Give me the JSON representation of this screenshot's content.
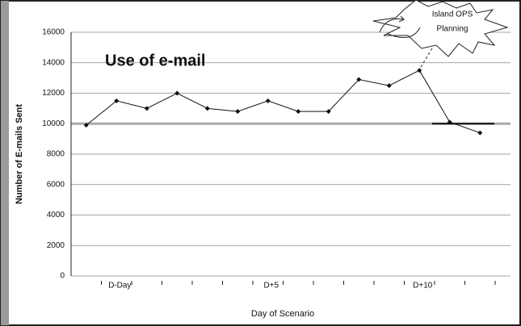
{
  "chart_data": {
    "type": "line",
    "title": "Use of e-mail",
    "annotation": [
      "Island OPS",
      "Planning"
    ],
    "x_label": "Day of Scenario",
    "y_label": "Number of E-mails Sent",
    "categories": [
      null,
      "D-Day",
      null,
      null,
      null,
      null,
      "D+5",
      null,
      null,
      null,
      null,
      "D+10",
      null,
      null
    ],
    "values": [
      9900,
      11500,
      11000,
      12000,
      11000,
      10800,
      11500,
      10800,
      10800,
      12900,
      12500,
      13500,
      10100,
      9400
    ],
    "color": "#111111",
    "reference_line": 10000,
    "ylim": [
      0,
      16000
    ],
    "yticks": [
      0,
      2000,
      4000,
      6000,
      8000,
      10000,
      12000,
      14000,
      16000
    ],
    "grid": true
  }
}
